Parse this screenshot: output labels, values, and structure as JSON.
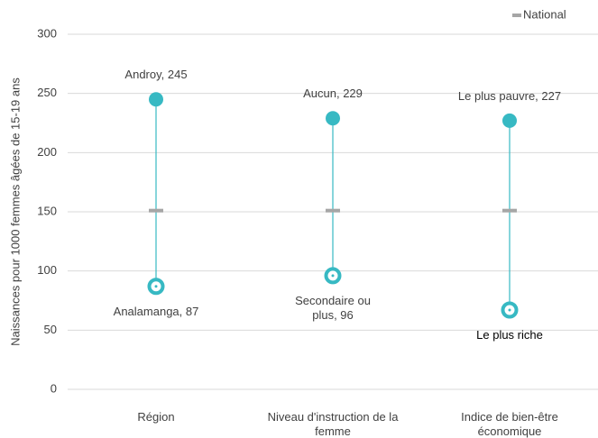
{
  "chart_data": {
    "type": "range",
    "y_label": "Naissances pour 1000 femmes âgées de 15-19 ans",
    "categories": [
      "Région",
      "Niveau d'instruction de la femme",
      "Indice de bien-être économique"
    ],
    "high": {
      "color": "#37b9c3",
      "values": [
        245,
        229,
        227
      ],
      "value_labels": [
        "Androy, 245",
        "Aucun, 229",
        "Le plus pauvre, 227"
      ]
    },
    "low": {
      "color": "#37b9c3",
      "values": [
        87,
        96,
        67
      ],
      "value_labels": [
        "Analamanga, 87",
        "Secondaire ou plus, 96",
        "Le plus riche"
      ]
    },
    "series": [
      {
        "name": "National",
        "color": "#a6a6a6",
        "values": [
          151,
          151,
          151
        ]
      }
    ],
    "ylim": [
      0,
      300
    ],
    "yticks": [
      0,
      50,
      100,
      150,
      200,
      250,
      300
    ],
    "grid": true,
    "legend": "top-right"
  }
}
